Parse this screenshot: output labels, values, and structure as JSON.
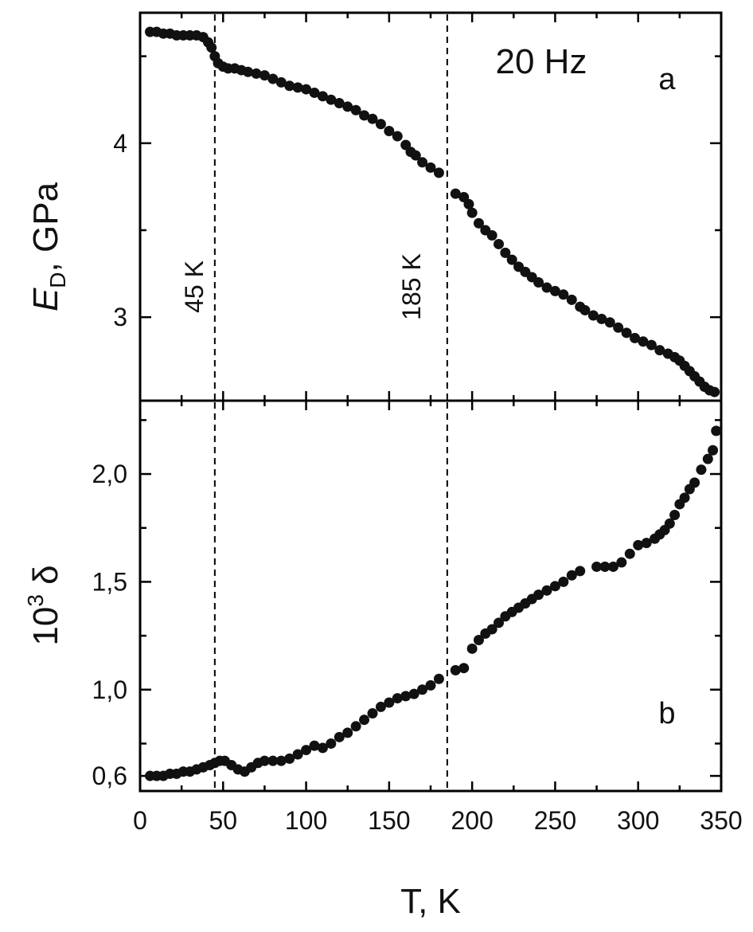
{
  "chart_data": [
    {
      "panel_label": "a",
      "type": "scatter",
      "title": "",
      "annotation": "20 Hz",
      "xlabel": "T, K",
      "ylabel": {
        "main": "E",
        "italic": true,
        "subscript": "D",
        "suffix": ", GPa"
      },
      "xlim": [
        0,
        350
      ],
      "ylim": [
        2.52,
        4.75
      ],
      "yticks": [
        3,
        4
      ],
      "ytick_labels": [
        "3",
        "4"
      ],
      "marker_lines": [
        {
          "x": 45,
          "label": "45 K"
        },
        {
          "x": 185,
          "label": "185 K"
        }
      ],
      "points": [
        [
          6,
          4.64
        ],
        [
          10,
          4.64
        ],
        [
          14,
          4.63
        ],
        [
          18,
          4.63
        ],
        [
          22,
          4.62
        ],
        [
          26,
          4.62
        ],
        [
          30,
          4.62
        ],
        [
          34,
          4.62
        ],
        [
          38,
          4.61
        ],
        [
          41,
          4.58
        ],
        [
          43,
          4.55
        ],
        [
          45,
          4.5
        ],
        [
          47,
          4.46
        ],
        [
          50,
          4.44
        ],
        [
          53,
          4.43
        ],
        [
          57,
          4.43
        ],
        [
          61,
          4.42
        ],
        [
          65,
          4.41
        ],
        [
          70,
          4.4
        ],
        [
          75,
          4.39
        ],
        [
          80,
          4.37
        ],
        [
          85,
          4.35
        ],
        [
          90,
          4.33
        ],
        [
          95,
          4.32
        ],
        [
          100,
          4.31
        ],
        [
          105,
          4.29
        ],
        [
          110,
          4.27
        ],
        [
          115,
          4.25
        ],
        [
          120,
          4.23
        ],
        [
          125,
          4.21
        ],
        [
          130,
          4.19
        ],
        [
          135,
          4.16
        ],
        [
          140,
          4.14
        ],
        [
          145,
          4.11
        ],
        [
          150,
          4.07
        ],
        [
          155,
          4.04
        ],
        [
          160,
          3.99
        ],
        [
          163,
          3.95
        ],
        [
          166,
          3.93
        ],
        [
          170,
          3.89
        ],
        [
          175,
          3.86
        ],
        [
          180,
          3.83
        ],
        [
          190,
          3.71
        ],
        [
          195,
          3.69
        ],
        [
          198,
          3.65
        ],
        [
          200,
          3.6
        ],
        [
          204,
          3.54
        ],
        [
          208,
          3.5
        ],
        [
          212,
          3.47
        ],
        [
          216,
          3.42
        ],
        [
          220,
          3.37
        ],
        [
          224,
          3.33
        ],
        [
          228,
          3.29
        ],
        [
          232,
          3.26
        ],
        [
          236,
          3.23
        ],
        [
          240,
          3.2
        ],
        [
          245,
          3.17
        ],
        [
          250,
          3.15
        ],
        [
          255,
          3.13
        ],
        [
          260,
          3.1
        ],
        [
          265,
          3.06
        ],
        [
          268,
          3.04
        ],
        [
          273,
          3.01
        ],
        [
          278,
          2.99
        ],
        [
          283,
          2.97
        ],
        [
          288,
          2.94
        ],
        [
          293,
          2.91
        ],
        [
          298,
          2.88
        ],
        [
          303,
          2.86
        ],
        [
          308,
          2.84
        ],
        [
          313,
          2.81
        ],
        [
          318,
          2.79
        ],
        [
          322,
          2.77
        ],
        [
          325,
          2.75
        ],
        [
          328,
          2.72
        ],
        [
          331,
          2.69
        ],
        [
          334,
          2.66
        ],
        [
          337,
          2.63
        ],
        [
          340,
          2.6
        ],
        [
          343,
          2.58
        ],
        [
          346,
          2.57
        ]
      ]
    },
    {
      "panel_label": "b",
      "type": "scatter",
      "title": "",
      "xlabel": "T, K",
      "ylabel": {
        "main": "10",
        "superscript": "3",
        "suffix": " δ"
      },
      "xlim": [
        0,
        350
      ],
      "ylim": [
        0.53,
        2.34
      ],
      "xticks": [
        0,
        50,
        100,
        150,
        200,
        250,
        300,
        350
      ],
      "xtick_labels": [
        "0",
        "50",
        "100",
        "150",
        "200",
        "250",
        "300",
        "350"
      ],
      "yticks": [
        0.6,
        1.0,
        1.5,
        2.0
      ],
      "ytick_labels": [
        "0,6",
        "1,0",
        "1,5",
        "2,0"
      ],
      "marker_lines": [
        {
          "x": 45
        },
        {
          "x": 185
        }
      ],
      "points": [
        [
          6,
          0.6
        ],
        [
          10,
          0.6
        ],
        [
          14,
          0.6
        ],
        [
          18,
          0.61
        ],
        [
          22,
          0.61
        ],
        [
          26,
          0.62
        ],
        [
          30,
          0.62
        ],
        [
          34,
          0.63
        ],
        [
          38,
          0.64
        ],
        [
          42,
          0.65
        ],
        [
          45,
          0.66
        ],
        [
          48,
          0.67
        ],
        [
          51,
          0.67
        ],
        [
          55,
          0.65
        ],
        [
          59,
          0.63
        ],
        [
          63,
          0.62
        ],
        [
          67,
          0.64
        ],
        [
          71,
          0.66
        ],
        [
          75,
          0.67
        ],
        [
          80,
          0.67
        ],
        [
          85,
          0.67
        ],
        [
          90,
          0.68
        ],
        [
          95,
          0.7
        ],
        [
          100,
          0.72
        ],
        [
          105,
          0.74
        ],
        [
          110,
          0.73
        ],
        [
          115,
          0.75
        ],
        [
          120,
          0.78
        ],
        [
          125,
          0.8
        ],
        [
          130,
          0.83
        ],
        [
          135,
          0.86
        ],
        [
          140,
          0.89
        ],
        [
          145,
          0.92
        ],
        [
          150,
          0.94
        ],
        [
          155,
          0.96
        ],
        [
          160,
          0.97
        ],
        [
          165,
          0.98
        ],
        [
          170,
          1.0
        ],
        [
          175,
          1.02
        ],
        [
          180,
          1.05
        ],
        [
          190,
          1.09
        ],
        [
          195,
          1.1
        ],
        [
          200,
          1.19
        ],
        [
          204,
          1.23
        ],
        [
          208,
          1.26
        ],
        [
          212,
          1.28
        ],
        [
          216,
          1.31
        ],
        [
          220,
          1.34
        ],
        [
          224,
          1.36
        ],
        [
          228,
          1.38
        ],
        [
          232,
          1.4
        ],
        [
          236,
          1.42
        ],
        [
          240,
          1.44
        ],
        [
          245,
          1.46
        ],
        [
          250,
          1.48
        ],
        [
          255,
          1.5
        ],
        [
          260,
          1.53
        ],
        [
          265,
          1.55
        ],
        [
          275,
          1.57
        ],
        [
          280,
          1.57
        ],
        [
          285,
          1.57
        ],
        [
          290,
          1.59
        ],
        [
          295,
          1.63
        ],
        [
          300,
          1.67
        ],
        [
          305,
          1.68
        ],
        [
          310,
          1.7
        ],
        [
          313,
          1.72
        ],
        [
          316,
          1.74
        ],
        [
          319,
          1.77
        ],
        [
          322,
          1.81
        ],
        [
          325,
          1.86
        ],
        [
          328,
          1.89
        ],
        [
          331,
          1.93
        ],
        [
          334,
          1.96
        ],
        [
          338,
          2.02
        ],
        [
          342,
          2.07
        ],
        [
          345,
          2.11
        ],
        [
          347,
          2.2
        ]
      ]
    }
  ]
}
